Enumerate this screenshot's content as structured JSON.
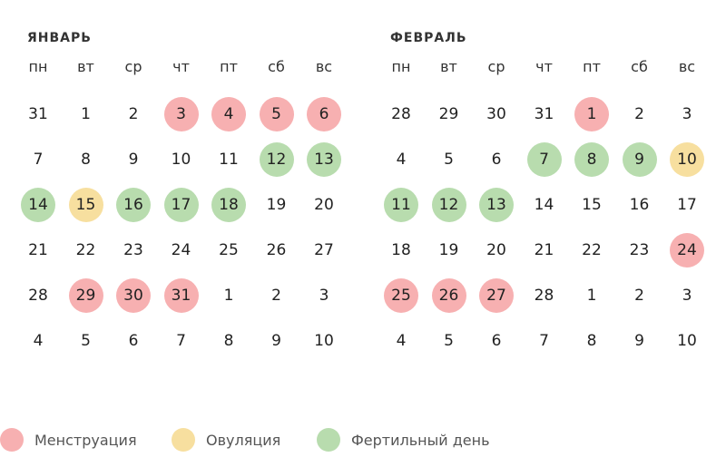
{
  "colors": {
    "menstruation": "#f7b0b1",
    "ovulation": "#f7df9f",
    "fertile": "#b8dcae"
  },
  "months": [
    {
      "title": "ЯНВАРЬ",
      "weekdays": [
        "пн",
        "вт",
        "ср",
        "чт",
        "пт",
        "сб",
        "вс"
      ],
      "weeks": [
        [
          {
            "d": "31"
          },
          {
            "d": "1"
          },
          {
            "d": "2"
          },
          {
            "d": "3",
            "t": "m"
          },
          {
            "d": "4",
            "t": "m"
          },
          {
            "d": "5",
            "t": "m"
          },
          {
            "d": "6",
            "t": "m"
          }
        ],
        [
          {
            "d": "7"
          },
          {
            "d": "8"
          },
          {
            "d": "9"
          },
          {
            "d": "10"
          },
          {
            "d": "11"
          },
          {
            "d": "12",
            "t": "f"
          },
          {
            "d": "13",
            "t": "f"
          }
        ],
        [
          {
            "d": "14",
            "t": "f"
          },
          {
            "d": "15",
            "t": "o"
          },
          {
            "d": "16",
            "t": "f"
          },
          {
            "d": "17",
            "t": "f"
          },
          {
            "d": "18",
            "t": "f"
          },
          {
            "d": "19"
          },
          {
            "d": "20"
          }
        ],
        [
          {
            "d": "21"
          },
          {
            "d": "22"
          },
          {
            "d": "23"
          },
          {
            "d": "24"
          },
          {
            "d": "25"
          },
          {
            "d": "26"
          },
          {
            "d": "27"
          }
        ],
        [
          {
            "d": "28"
          },
          {
            "d": "29",
            "t": "m"
          },
          {
            "d": "30",
            "t": "m"
          },
          {
            "d": "31",
            "t": "m"
          },
          {
            "d": "1"
          },
          {
            "d": "2"
          },
          {
            "d": "3"
          }
        ],
        [
          {
            "d": "4"
          },
          {
            "d": "5"
          },
          {
            "d": "6"
          },
          {
            "d": "7"
          },
          {
            "d": "8"
          },
          {
            "d": "9"
          },
          {
            "d": "10"
          }
        ]
      ]
    },
    {
      "title": "ФЕВРАЛЬ",
      "weekdays": [
        "пн",
        "вт",
        "ср",
        "чт",
        "пт",
        "сб",
        "вс"
      ],
      "weeks": [
        [
          {
            "d": "28"
          },
          {
            "d": "29"
          },
          {
            "d": "30"
          },
          {
            "d": "31"
          },
          {
            "d": "1",
            "t": "m"
          },
          {
            "d": "2"
          },
          {
            "d": "3"
          }
        ],
        [
          {
            "d": "4"
          },
          {
            "d": "5"
          },
          {
            "d": "6"
          },
          {
            "d": "7",
            "t": "f"
          },
          {
            "d": "8",
            "t": "f"
          },
          {
            "d": "9",
            "t": "f"
          },
          {
            "d": "10",
            "t": "o"
          }
        ],
        [
          {
            "d": "11",
            "t": "f"
          },
          {
            "d": "12",
            "t": "f"
          },
          {
            "d": "13",
            "t": "f"
          },
          {
            "d": "14"
          },
          {
            "d": "15"
          },
          {
            "d": "16"
          },
          {
            "d": "17"
          }
        ],
        [
          {
            "d": "18"
          },
          {
            "d": "19"
          },
          {
            "d": "20"
          },
          {
            "d": "21"
          },
          {
            "d": "22"
          },
          {
            "d": "23"
          },
          {
            "d": "24",
            "t": "m"
          }
        ],
        [
          {
            "d": "25",
            "t": "m"
          },
          {
            "d": "26",
            "t": "m"
          },
          {
            "d": "27",
            "t": "m"
          },
          {
            "d": "28"
          },
          {
            "d": "1"
          },
          {
            "d": "2"
          },
          {
            "d": "3"
          }
        ],
        [
          {
            "d": "4"
          },
          {
            "d": "5"
          },
          {
            "d": "6"
          },
          {
            "d": "7"
          },
          {
            "d": "8"
          },
          {
            "d": "9"
          },
          {
            "d": "10"
          }
        ]
      ]
    }
  ],
  "legend": {
    "menstruation": "Менструация",
    "ovulation": "Овуляция",
    "fertile": "Фертильный день"
  }
}
